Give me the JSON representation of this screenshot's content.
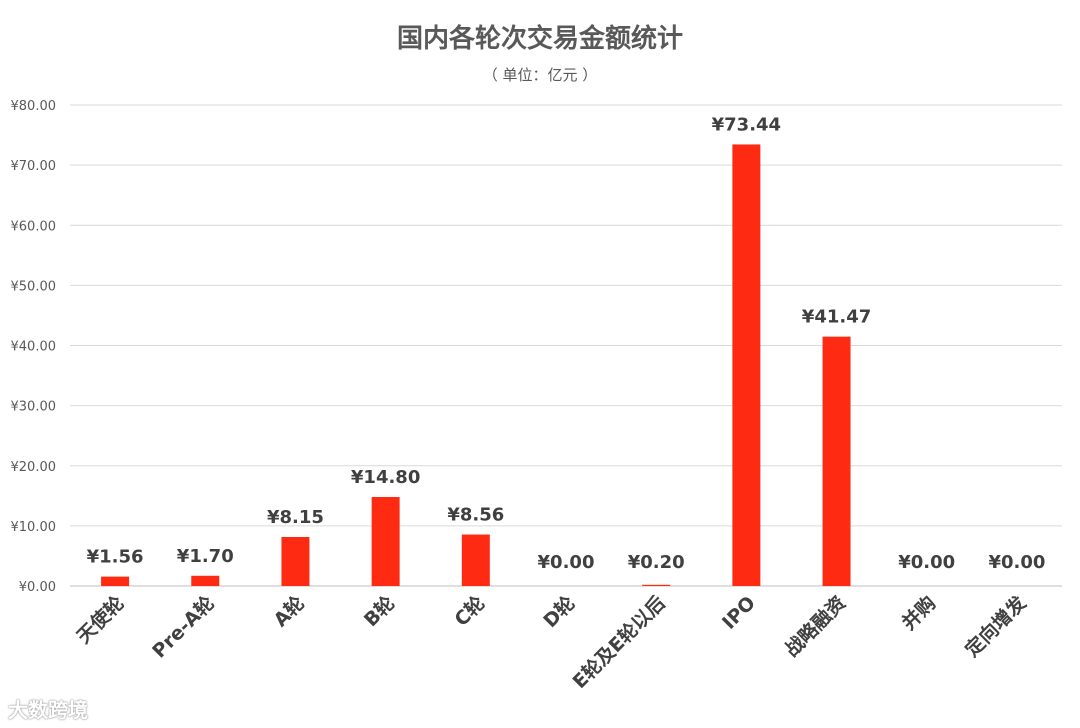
{
  "chart_data": {
    "type": "bar",
    "title": "国内各轮次交易金额统计",
    "subtitle": "（ 单位：亿元 ）",
    "categories": [
      "天使轮",
      "Pre-A轮",
      "A轮",
      "B轮",
      "C轮",
      "D轮",
      "E轮及E轮以后",
      "IPO",
      "战略融资",
      "并购",
      "定向增发"
    ],
    "values": [
      1.56,
      1.7,
      8.15,
      14.8,
      8.56,
      0.0,
      0.2,
      73.44,
      41.47,
      0.0,
      0.0
    ],
    "data_labels": [
      "¥1.56",
      "¥1.70",
      "¥8.15",
      "¥14.80",
      "¥8.56",
      "¥0.00",
      "¥0.20",
      "¥73.44",
      "¥41.47",
      "¥0.00",
      "¥0.00"
    ],
    "yticks": [
      "¥0.00",
      "¥10.00",
      "¥20.00",
      "¥30.00",
      "¥40.00",
      "¥50.00",
      "¥60.00",
      "¥70.00",
      "¥80.00"
    ],
    "ylim": [
      0,
      80
    ],
    "grid": true,
    "bar_color": "#ff2a12"
  },
  "watermark": "大数跨境"
}
